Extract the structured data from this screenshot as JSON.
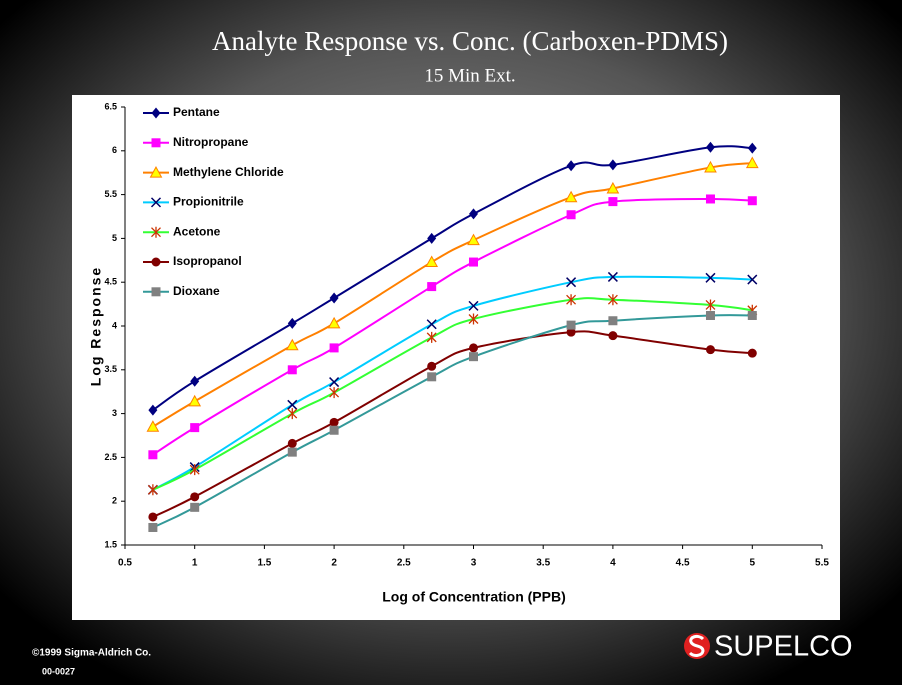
{
  "chart_data": {
    "type": "line",
    "title": "Analyte Response vs. Conc. (Carboxen-PDMS)",
    "subtitle": "15 Min Ext.",
    "x_label": "Log of Concentration (PPB)",
    "y_label": "Log Response",
    "x": [
      0.7,
      1,
      1.7,
      2,
      2.7,
      3,
      3.7,
      4,
      4.7,
      5
    ],
    "series": [
      {
        "name": "Pentane",
        "color": "#000080",
        "marker": "diamond",
        "marker_color": "#000080",
        "values": [
          3.04,
          3.37,
          4.03,
          4.32,
          5.0,
          5.28,
          5.83,
          5.84,
          6.04,
          6.03
        ]
      },
      {
        "name": "Nitropropane",
        "color": "#ff00ff",
        "marker": "square",
        "marker_color": "#ff00ff",
        "values": [
          2.53,
          2.84,
          3.5,
          3.75,
          4.45,
          4.73,
          5.27,
          5.42,
          5.45,
          5.43
        ]
      },
      {
        "name": "Methylene Chloride",
        "color": "#ff8000",
        "marker": "triangle",
        "marker_color": "#ffff00",
        "values": [
          2.85,
          3.14,
          3.78,
          4.03,
          4.73,
          4.98,
          5.47,
          5.57,
          5.81,
          5.86
        ]
      },
      {
        "name": "Propionitrile",
        "color": "#00ccff",
        "marker": "x",
        "marker_color": "#000066",
        "values": [
          2.13,
          2.39,
          3.1,
          3.36,
          4.02,
          4.23,
          4.5,
          4.56,
          4.55,
          4.53
        ]
      },
      {
        "name": "Acetone",
        "color": "#33ff33",
        "marker": "star",
        "marker_color": "#cc3300",
        "values": [
          2.13,
          2.36,
          3.0,
          3.24,
          3.87,
          4.08,
          4.3,
          4.3,
          4.24,
          4.18
        ]
      },
      {
        "name": "Isopropanol",
        "color": "#800000",
        "marker": "circle",
        "marker_color": "#800000",
        "values": [
          1.82,
          2.05,
          2.66,
          2.9,
          3.54,
          3.75,
          3.93,
          3.89,
          3.73,
          3.69
        ]
      },
      {
        "name": "Dioxane",
        "color": "#339999",
        "marker": "square",
        "marker_color": "#808080",
        "values": [
          1.7,
          1.93,
          2.56,
          2.81,
          3.42,
          3.65,
          4.01,
          4.06,
          4.12,
          4.12
        ]
      }
    ],
    "xlim": [
      0.5,
      5.5
    ],
    "xticks": [
      0.5,
      1,
      1.5,
      2,
      2.5,
      3,
      3.5,
      4,
      4.5,
      5,
      5.5
    ],
    "ylim": [
      1.5,
      6.5
    ],
    "yticks": [
      1.5,
      2,
      2.5,
      3,
      3.5,
      4,
      4.5,
      5,
      5.5,
      6,
      6.5
    ],
    "grid": false,
    "smooth": true,
    "legend": "upper left"
  },
  "footer": {
    "copyright": "©1999 Sigma-Aldrich Co.",
    "code": "00-0027",
    "logo": "SUPELCO"
  }
}
